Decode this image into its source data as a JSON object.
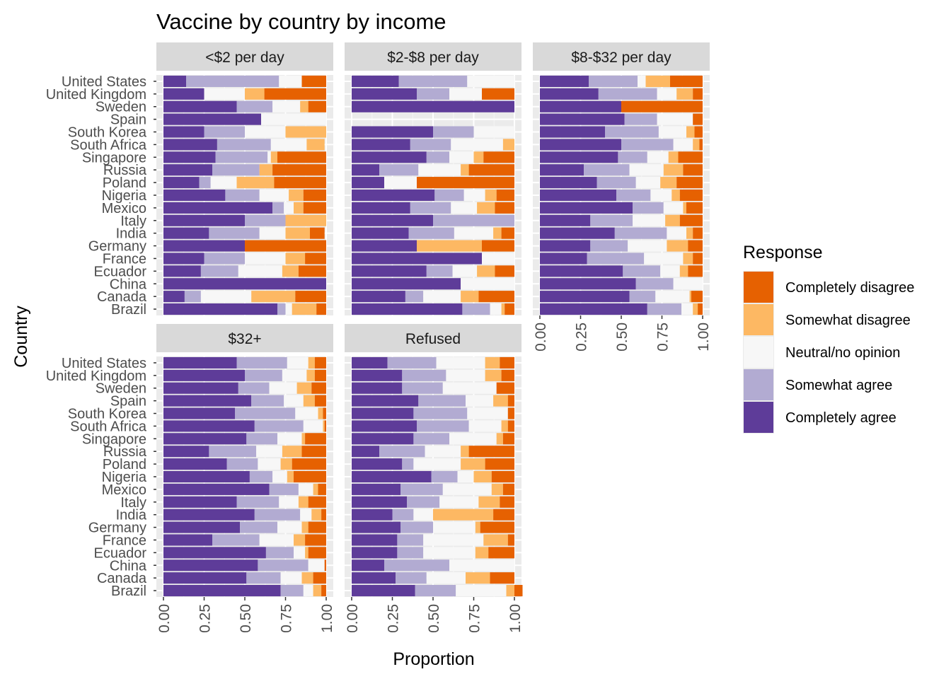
{
  "chart_data": {
    "type": "bar",
    "orientation": "horizontal",
    "stacked": true,
    "title": "Vaccine by country by income",
    "xlabel": "Proportion",
    "ylabel": "Country",
    "xlim": [
      0,
      1
    ],
    "xticks": [
      "0.00",
      "0.25",
      "0.50",
      "0.75",
      "1.00"
    ],
    "grid": true,
    "legend": {
      "title": "Response",
      "position": "right",
      "entries": [
        "Completely disagree",
        "Somewhat disagree",
        "Neutral/no opinion",
        "Somewhat agree",
        "Completely agree"
      ]
    },
    "colors": {
      "Completely agree": "#5e3c99",
      "Somewhat agree": "#b2abd2",
      "Neutral/no opinion": "#f7f7f7",
      "Somewhat disagree": "#fdb863",
      "Completely disagree": "#e66101",
      "panel_bg": "#ebebeb",
      "strip_bg": "#d9d9d9"
    },
    "stack_order": [
      "Completely agree",
      "Somewhat agree",
      "Neutral/no opinion",
      "Somewhat disagree",
      "Completely disagree"
    ],
    "categories": [
      "United States",
      "United Kingdom",
      "Sweden",
      "Spain",
      "South Korea",
      "South Africa",
      "Singapore",
      "Russia",
      "Poland",
      "Nigeria",
      "Mexico",
      "Italy",
      "India",
      "Germany",
      "France",
      "Ecuador",
      "China",
      "Canada",
      "Brazil"
    ],
    "panels": [
      {
        "facet": "<$2 per day",
        "values": [
          [
            0.14,
            0.57,
            0.14,
            0.0,
            0.15
          ],
          [
            0.25,
            0.0,
            0.25,
            0.12,
            0.38
          ],
          [
            0.45,
            0.22,
            0.17,
            0.05,
            0.11
          ],
          [
            0.6,
            0.0,
            0.4,
            0.0,
            0.0
          ],
          [
            0.25,
            0.25,
            0.25,
            0.25,
            0.0
          ],
          [
            0.33,
            0.33,
            0.22,
            0.11,
            0.0
          ],
          [
            0.32,
            0.32,
            0.02,
            0.04,
            0.3
          ],
          [
            0.3,
            0.29,
            0.0,
            0.08,
            0.33
          ],
          [
            0.22,
            0.07,
            0.16,
            0.23,
            0.32
          ],
          [
            0.38,
            0.21,
            0.18,
            0.09,
            0.14
          ],
          [
            0.67,
            0.07,
            0.06,
            0.06,
            0.14
          ],
          [
            0.5,
            0.25,
            0.0,
            0.25,
            0.0
          ],
          [
            0.28,
            0.31,
            0.16,
            0.15,
            0.09
          ],
          [
            0.5,
            0.0,
            0.0,
            0.0,
            0.5
          ],
          [
            0.25,
            0.25,
            0.25,
            0.12,
            0.13
          ],
          [
            0.23,
            0.23,
            0.27,
            0.1,
            0.17
          ],
          [
            1.0,
            0.0,
            0.0,
            0.0,
            0.0
          ],
          [
            0.13,
            0.1,
            0.31,
            0.27,
            0.19
          ],
          [
            0.7,
            0.05,
            0.04,
            0.15,
            0.06
          ]
        ]
      },
      {
        "facet": "$2-$8 per day",
        "values": [
          [
            0.29,
            0.42,
            0.29,
            0.0,
            0.0
          ],
          [
            0.4,
            0.2,
            0.2,
            0.0,
            0.2
          ],
          [
            1.0,
            0.0,
            0.0,
            0.0,
            0.0
          ],
          [
            0.0,
            0.0,
            0.0,
            0.0,
            0.0
          ],
          [
            0.5,
            0.25,
            0.25,
            0.0,
            0.0
          ],
          [
            0.36,
            0.25,
            0.32,
            0.07,
            0.0
          ],
          [
            0.46,
            0.14,
            0.15,
            0.06,
            0.19
          ],
          [
            0.17,
            0.24,
            0.26,
            0.05,
            0.28
          ],
          [
            0.2,
            0.0,
            0.2,
            0.0,
            0.6
          ],
          [
            0.51,
            0.18,
            0.13,
            0.07,
            0.11
          ],
          [
            0.36,
            0.25,
            0.16,
            0.11,
            0.12
          ],
          [
            0.5,
            0.5,
            0.0,
            0.0,
            0.0
          ],
          [
            0.35,
            0.28,
            0.24,
            0.05,
            0.08
          ],
          [
            0.4,
            0.0,
            0.0,
            0.4,
            0.2
          ],
          [
            0.8,
            0.0,
            0.2,
            0.0,
            0.0
          ],
          [
            0.46,
            0.16,
            0.15,
            0.11,
            0.12
          ],
          [
            0.67,
            0.0,
            0.33,
            0.0,
            0.0
          ],
          [
            0.33,
            0.11,
            0.23,
            0.11,
            0.22
          ],
          [
            0.68,
            0.17,
            0.07,
            0.02,
            0.06
          ]
        ]
      },
      {
        "facet": "$8-$32 per day",
        "values": [
          [
            0.3,
            0.3,
            0.05,
            0.15,
            0.2
          ],
          [
            0.36,
            0.36,
            0.12,
            0.1,
            0.06
          ],
          [
            0.5,
            0.0,
            0.0,
            0.0,
            0.5
          ],
          [
            0.52,
            0.2,
            0.22,
            0.0,
            0.06
          ],
          [
            0.4,
            0.33,
            0.17,
            0.05,
            0.05
          ],
          [
            0.5,
            0.32,
            0.12,
            0.04,
            0.02
          ],
          [
            0.48,
            0.18,
            0.13,
            0.06,
            0.15
          ],
          [
            0.27,
            0.28,
            0.21,
            0.12,
            0.12
          ],
          [
            0.35,
            0.24,
            0.15,
            0.1,
            0.16
          ],
          [
            0.47,
            0.21,
            0.13,
            0.05,
            0.14
          ],
          [
            0.57,
            0.19,
            0.12,
            0.02,
            0.1
          ],
          [
            0.31,
            0.26,
            0.2,
            0.09,
            0.14
          ],
          [
            0.46,
            0.32,
            0.12,
            0.04,
            0.06
          ],
          [
            0.31,
            0.23,
            0.24,
            0.13,
            0.09
          ],
          [
            0.29,
            0.35,
            0.24,
            0.06,
            0.06
          ],
          [
            0.51,
            0.23,
            0.12,
            0.05,
            0.09
          ],
          [
            0.59,
            0.23,
            0.18,
            0.0,
            0.0
          ],
          [
            0.55,
            0.16,
            0.21,
            0.01,
            0.07
          ],
          [
            0.66,
            0.21,
            0.07,
            0.03,
            0.03
          ]
        ]
      },
      {
        "facet": "$32+",
        "values": [
          [
            0.45,
            0.31,
            0.13,
            0.04,
            0.07
          ],
          [
            0.5,
            0.23,
            0.15,
            0.05,
            0.07
          ],
          [
            0.46,
            0.19,
            0.17,
            0.09,
            0.09
          ],
          [
            0.54,
            0.2,
            0.12,
            0.07,
            0.07
          ],
          [
            0.44,
            0.37,
            0.14,
            0.03,
            0.02
          ],
          [
            0.56,
            0.3,
            0.12,
            0.01,
            0.01
          ],
          [
            0.51,
            0.19,
            0.15,
            0.02,
            0.13
          ],
          [
            0.28,
            0.29,
            0.16,
            0.12,
            0.15
          ],
          [
            0.39,
            0.19,
            0.14,
            0.07,
            0.21
          ],
          [
            0.53,
            0.14,
            0.09,
            0.04,
            0.2
          ],
          [
            0.65,
            0.18,
            0.09,
            0.03,
            0.05
          ],
          [
            0.45,
            0.26,
            0.12,
            0.06,
            0.11
          ],
          [
            0.56,
            0.28,
            0.07,
            0.06,
            0.03
          ],
          [
            0.47,
            0.23,
            0.15,
            0.04,
            0.11
          ],
          [
            0.3,
            0.29,
            0.21,
            0.07,
            0.13
          ],
          [
            0.63,
            0.17,
            0.07,
            0.02,
            0.11
          ],
          [
            0.58,
            0.31,
            0.1,
            0.0,
            0.01
          ],
          [
            0.51,
            0.21,
            0.13,
            0.07,
            0.08
          ],
          [
            0.72,
            0.14,
            0.06,
            0.05,
            0.03
          ]
        ]
      },
      {
        "facet": "Refused",
        "values": [
          [
            0.22,
            0.3,
            0.3,
            0.09,
            0.09
          ],
          [
            0.31,
            0.27,
            0.24,
            0.1,
            0.08
          ],
          [
            0.31,
            0.25,
            0.33,
            0.0,
            0.11
          ],
          [
            0.41,
            0.29,
            0.17,
            0.09,
            0.04
          ],
          [
            0.38,
            0.33,
            0.25,
            0.0,
            0.04
          ],
          [
            0.4,
            0.32,
            0.2,
            0.04,
            0.04
          ],
          [
            0.38,
            0.22,
            0.29,
            0.04,
            0.07
          ],
          [
            0.17,
            0.28,
            0.22,
            0.05,
            0.28
          ],
          [
            0.31,
            0.07,
            0.29,
            0.15,
            0.18
          ],
          [
            0.49,
            0.16,
            0.1,
            0.11,
            0.14
          ],
          [
            0.3,
            0.26,
            0.3,
            0.07,
            0.07
          ],
          [
            0.34,
            0.2,
            0.24,
            0.13,
            0.09
          ],
          [
            0.25,
            0.13,
            0.12,
            0.37,
            0.13
          ],
          [
            0.3,
            0.2,
            0.26,
            0.03,
            0.21
          ],
          [
            0.28,
            0.16,
            0.37,
            0.15,
            0.04
          ],
          [
            0.28,
            0.16,
            0.32,
            0.08,
            0.16
          ],
          [
            0.2,
            0.4,
            0.4,
            0.0,
            0.0
          ],
          [
            0.27,
            0.19,
            0.24,
            0.15,
            0.15
          ],
          [
            0.39,
            0.25,
            0.31,
            0.05,
            0.05
          ]
        ]
      }
    ]
  }
}
